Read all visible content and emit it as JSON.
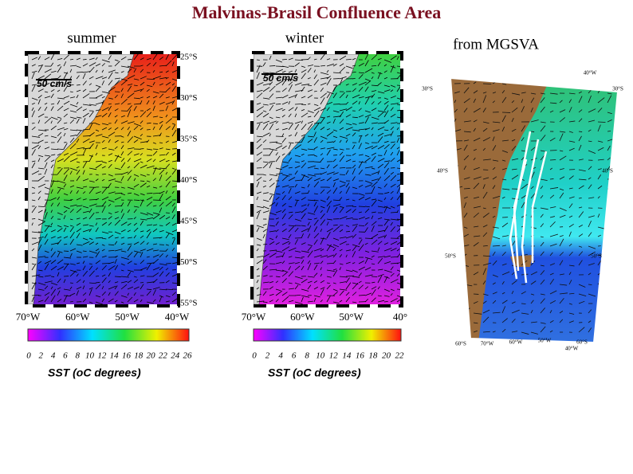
{
  "title": "Malvinas-Brasil Confluence Area",
  "panels": [
    {
      "label": "summer",
      "scale": "50 cm/s",
      "lat_labels": [
        "25°S",
        "30°S",
        "35°S",
        "40°S",
        "45°S",
        "50°S",
        "55°S"
      ],
      "lon_labels": [
        "70°W",
        "60°W",
        "50°W",
        "40°W"
      ],
      "colorbar_ticks": [
        "0",
        "2",
        "4",
        "6",
        "8",
        "10",
        "12",
        "14",
        "16",
        "18",
        "20",
        "22",
        "24",
        "26"
      ],
      "colorbar_title": "SST (oC degrees)"
    },
    {
      "label": "winter",
      "scale": "50 cm/s",
      "lon_labels": [
        "70°W",
        "60°W",
        "50°W",
        "40°"
      ],
      "colorbar_ticks": [
        "0",
        "2",
        "4",
        "6",
        "8",
        "10",
        "12",
        "14",
        "16",
        "18",
        "20",
        "22"
      ],
      "colorbar_title": "SST (oC degrees)"
    },
    {
      "label": "from MGSVA",
      "map_labels": [
        "40°W",
        "30°S",
        "30°S",
        "40°S",
        "40°S",
        "50°S",
        "50°S",
        "60°S",
        "70°W",
        "60°W",
        "50°W",
        "40°W",
        "60°S"
      ]
    }
  ]
}
